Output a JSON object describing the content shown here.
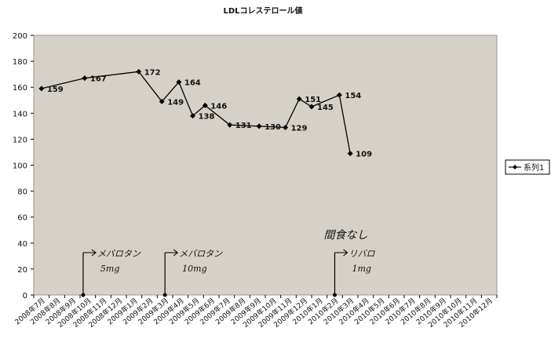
{
  "chart_data": {
    "type": "line",
    "title": "LDLコレステロール値",
    "categories": [
      "2008年7月",
      "2008年8月",
      "2008年9月",
      "2008年10月",
      "2008年11月",
      "2008年12月",
      "2009年1月",
      "2009年2月",
      "2009年3月",
      "2009年4月",
      "2009年5月",
      "2009年6月",
      "2009年7月",
      "2009年8月",
      "2009年9月",
      "2009年10月",
      "2009年11月",
      "2009年12月",
      "2010年1月",
      "2010年2月",
      "2010年3月",
      "2010年4月",
      "2010年5月",
      "2010年6月",
      "2010年7月",
      "2010年8月",
      "2010年9月",
      "2010年10月",
      "2010年11月",
      "2010年12月"
    ],
    "series": [
      {
        "name": "系列1",
        "points": [
          {
            "x": 0,
            "y": 159
          },
          {
            "x": 2.8,
            "y": 167
          },
          {
            "x": 6.3,
            "y": 172
          },
          {
            "x": 7.8,
            "y": 149
          },
          {
            "x": 8.9,
            "y": 164
          },
          {
            "x": 9.8,
            "y": 138
          },
          {
            "x": 10.6,
            "y": 146
          },
          {
            "x": 12.2,
            "y": 131
          },
          {
            "x": 14.1,
            "y": 130
          },
          {
            "x": 15.8,
            "y": 129
          },
          {
            "x": 16.7,
            "y": 151
          },
          {
            "x": 17.5,
            "y": 145
          },
          {
            "x": 19.3,
            "y": 154
          },
          {
            "x": 20.0,
            "y": 109
          }
        ]
      }
    ],
    "ylim": [
      0,
      200
    ],
    "yticks": [
      0,
      20,
      40,
      60,
      80,
      100,
      120,
      140,
      160,
      180,
      200
    ],
    "grid": false,
    "legend_position": "right",
    "colors": {
      "plot_background": "#d6d1c8",
      "line": "#000000",
      "marker": "#000000"
    },
    "annotations": [
      {
        "x": 2.7,
        "text_lines": [
          "メバロタン",
          "5mg"
        ]
      },
      {
        "x": 8.0,
        "text_lines": [
          "メバロタン",
          "10mg"
        ]
      },
      {
        "x": 19.0,
        "text_lines": [
          "間食なし",
          "リバロ",
          "1mg"
        ]
      }
    ]
  }
}
